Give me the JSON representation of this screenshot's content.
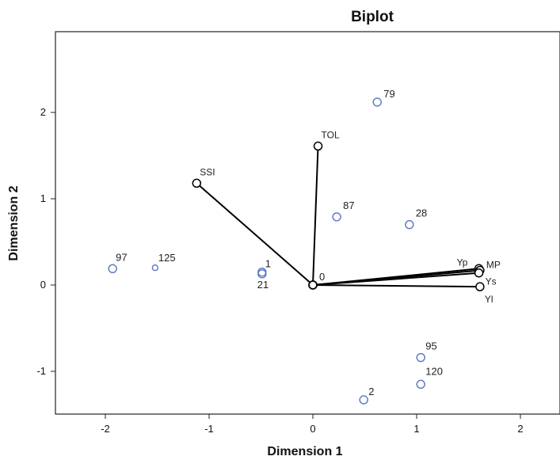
{
  "chart_data": {
    "type": "scatter",
    "title": "Biplot",
    "xlabel": "Dimension 1",
    "ylabel": "Dimension 2",
    "xlim": [
      -2.4,
      2.4
    ],
    "ylim": [
      -1.5,
      2.95
    ],
    "xticks": [
      "-2",
      "-1",
      "0",
      "1",
      "2"
    ],
    "yticks": [
      "-1",
      "0",
      "1",
      "2"
    ],
    "grid": false,
    "points": [
      {
        "label": "79",
        "x": 0.62,
        "y": 2.12
      },
      {
        "label": "87",
        "x": 0.23,
        "y": 0.79
      },
      {
        "label": "28",
        "x": 0.93,
        "y": 0.7
      },
      {
        "label": "97",
        "x": -1.93,
        "y": 0.19
      },
      {
        "label": "125",
        "x": -1.52,
        "y": 0.2
      },
      {
        "label": "1",
        "x": -0.49,
        "y": 0.15
      },
      {
        "label": "21",
        "x": -0.49,
        "y": 0.13
      },
      {
        "label": "95",
        "x": 1.04,
        "y": -0.84
      },
      {
        "label": "120",
        "x": 1.04,
        "y": -1.15
      },
      {
        "label": "2",
        "x": 0.49,
        "y": -1.33
      }
    ],
    "origin_label": "0",
    "vectors": [
      {
        "label": "SSI",
        "x": -1.12,
        "y": 1.18
      },
      {
        "label": "TOL",
        "x": 0.05,
        "y": 1.61
      },
      {
        "label": "Yp",
        "x": 1.6,
        "y": 0.19
      },
      {
        "label": "MP",
        "x": 1.61,
        "y": 0.17
      },
      {
        "label": "Ys",
        "x": 1.6,
        "y": 0.14
      },
      {
        "label": "Yl",
        "x": 1.61,
        "y": -0.02
      }
    ],
    "colors": {
      "points": "#5b74c4",
      "vectors": "#000000",
      "text": "#111111"
    }
  }
}
